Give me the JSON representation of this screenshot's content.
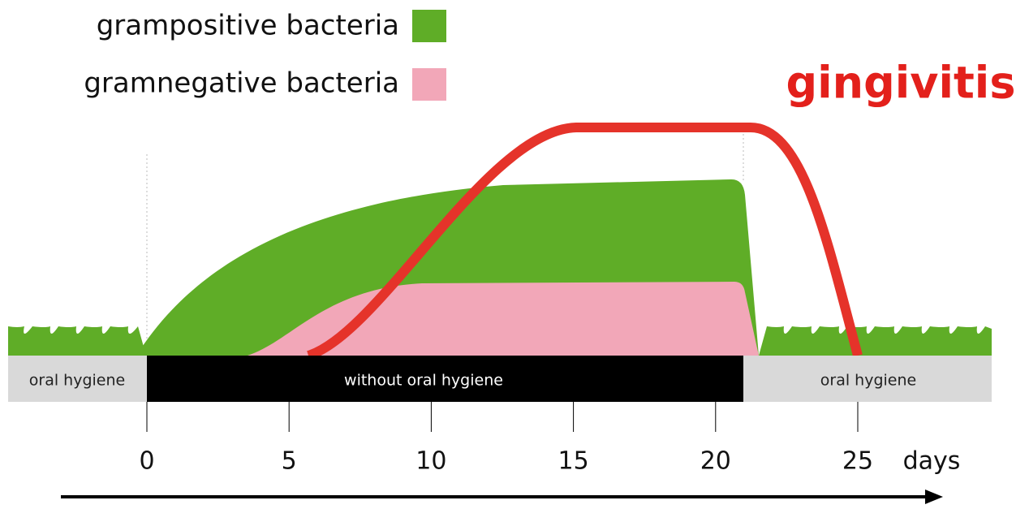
{
  "legend": {
    "items": [
      {
        "label": "grampositive bacteria"
      },
      {
        "label": "gramnegative bacteria"
      }
    ]
  },
  "annotation": "gingivitis",
  "phases": [
    {
      "label": "oral hygiene"
    },
    {
      "label": "without oral hygiene"
    },
    {
      "label": "oral hygiene"
    }
  ],
  "axis": {
    "ticks": [
      0,
      5,
      10,
      15,
      20,
      25
    ],
    "unit": "days"
  }
}
